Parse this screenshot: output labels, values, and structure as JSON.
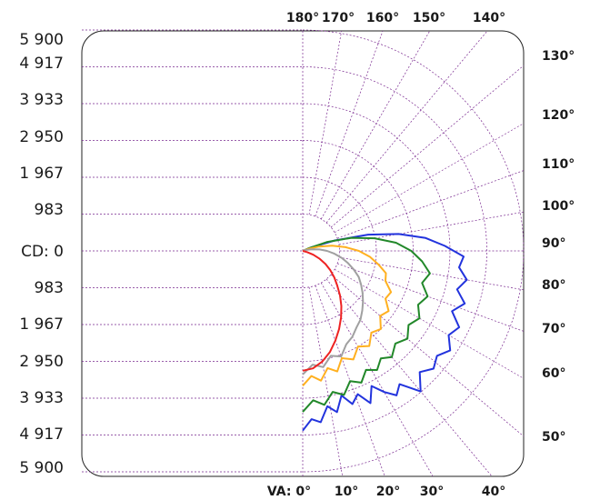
{
  "chart_data": {
    "type": "polar",
    "unit_prefix": "CD: 0",
    "max_cd": 5900,
    "cd_labels_upper": [
      "5 900",
      "4 917",
      "3 933",
      "2 950",
      "1 967",
      "983"
    ],
    "cd_labels_lower": [
      "983",
      "1 967",
      "2 950",
      "3 933",
      "4 917",
      "5 900"
    ],
    "cd_center_label": "CD: 0",
    "top_angle_labels": [
      "180°",
      "170°",
      "160°",
      "150°",
      "140°"
    ],
    "right_angle_labels": [
      "130°",
      "120°",
      "110°",
      "100°",
      "90°",
      "80°",
      "70°",
      "60°",
      "50°"
    ],
    "bottom_angle_labels": [
      "VA: 0°",
      "10°",
      "20°",
      "30°",
      "40°"
    ],
    "series": [
      {
        "color": "#2233dd",
        "points": [
          {
            "angle": 0,
            "cd": 4800
          },
          {
            "angle": 3,
            "cd": 4500
          },
          {
            "angle": 6,
            "cd": 4600
          },
          {
            "angle": 9,
            "cd": 4200
          },
          {
            "angle": 12,
            "cd": 4400
          },
          {
            "angle": 15,
            "cd": 4000
          },
          {
            "angle": 18,
            "cd": 4300
          },
          {
            "angle": 21,
            "cd": 4100
          },
          {
            "angle": 24,
            "cd": 4450
          },
          {
            "angle": 27,
            "cd": 4050
          },
          {
            "angle": 30,
            "cd": 4350
          },
          {
            "angle": 33,
            "cd": 4600
          },
          {
            "angle": 36,
            "cd": 4400
          },
          {
            "angle": 40,
            "cd": 4900
          },
          {
            "angle": 44,
            "cd": 4500
          },
          {
            "angle": 48,
            "cd": 4700
          },
          {
            "angle": 52,
            "cd": 4550
          },
          {
            "angle": 56,
            "cd": 4750
          },
          {
            "angle": 60,
            "cd": 4500
          },
          {
            "angle": 64,
            "cd": 4650
          },
          {
            "angle": 68,
            "cd": 4300
          },
          {
            "angle": 72,
            "cd": 4550
          },
          {
            "angle": 76,
            "cd": 4250
          },
          {
            "angle": 80,
            "cd": 4450
          },
          {
            "angle": 84,
            "cd": 4200
          },
          {
            "angle": 88,
            "cd": 4300
          },
          {
            "angle": 92,
            "cd": 3800
          },
          {
            "angle": 96,
            "cd": 3300
          },
          {
            "angle": 100,
            "cd": 2600
          },
          {
            "angle": 104,
            "cd": 1800
          },
          {
            "angle": 108,
            "cd": 900
          },
          {
            "angle": 112,
            "cd": 250
          },
          {
            "angle": 115,
            "cd": 0
          }
        ]
      },
      {
        "color": "#22882a",
        "points": [
          {
            "angle": 0,
            "cd": 4300
          },
          {
            "angle": 4,
            "cd": 4000
          },
          {
            "angle": 8,
            "cd": 4150
          },
          {
            "angle": 12,
            "cd": 3850
          },
          {
            "angle": 16,
            "cd": 4000
          },
          {
            "angle": 20,
            "cd": 3700
          },
          {
            "angle": 24,
            "cd": 3850
          },
          {
            "angle": 28,
            "cd": 3600
          },
          {
            "angle": 32,
            "cd": 3750
          },
          {
            "angle": 36,
            "cd": 3550
          },
          {
            "angle": 40,
            "cd": 3700
          },
          {
            "angle": 45,
            "cd": 3500
          },
          {
            "angle": 50,
            "cd": 3650
          },
          {
            "angle": 55,
            "cd": 3450
          },
          {
            "angle": 60,
            "cd": 3600
          },
          {
            "angle": 65,
            "cd": 3400
          },
          {
            "angle": 70,
            "cd": 3550
          },
          {
            "angle": 75,
            "cd": 3300
          },
          {
            "angle": 80,
            "cd": 3450
          },
          {
            "angle": 85,
            "cd": 3200
          },
          {
            "angle": 90,
            "cd": 2900
          },
          {
            "angle": 95,
            "cd": 2500
          },
          {
            "angle": 100,
            "cd": 1950
          },
          {
            "angle": 105,
            "cd": 1350
          },
          {
            "angle": 110,
            "cd": 700
          },
          {
            "angle": 114,
            "cd": 150
          },
          {
            "angle": 116,
            "cd": 0
          }
        ]
      },
      {
        "color": "#ffb020",
        "points": [
          {
            "angle": 0,
            "cd": 3600
          },
          {
            "angle": 4,
            "cd": 3350
          },
          {
            "angle": 8,
            "cd": 3500
          },
          {
            "angle": 12,
            "cd": 3200
          },
          {
            "angle": 16,
            "cd": 3350
          },
          {
            "angle": 20,
            "cd": 3050
          },
          {
            "angle": 25,
            "cd": 3200
          },
          {
            "angle": 30,
            "cd": 2950
          },
          {
            "angle": 35,
            "cd": 3100
          },
          {
            "angle": 40,
            "cd": 2850
          },
          {
            "angle": 45,
            "cd": 2950
          },
          {
            "angle": 50,
            "cd": 2700
          },
          {
            "angle": 55,
            "cd": 2800
          },
          {
            "angle": 60,
            "cd": 2550
          },
          {
            "angle": 65,
            "cd": 2600
          },
          {
            "angle": 70,
            "cd": 2350
          },
          {
            "angle": 75,
            "cd": 2300
          },
          {
            "angle": 80,
            "cd": 2050
          },
          {
            "angle": 85,
            "cd": 1800
          },
          {
            "angle": 90,
            "cd": 1500
          },
          {
            "angle": 95,
            "cd": 1150
          },
          {
            "angle": 100,
            "cd": 800
          },
          {
            "angle": 105,
            "cd": 450
          },
          {
            "angle": 110,
            "cd": 150
          },
          {
            "angle": 113,
            "cd": 0
          }
        ]
      },
      {
        "color": "#a0a0a0",
        "points": [
          {
            "angle": 0,
            "cd": 3300
          },
          {
            "angle": 5,
            "cd": 3050
          },
          {
            "angle": 10,
            "cd": 3150
          },
          {
            "angle": 15,
            "cd": 2900
          },
          {
            "angle": 20,
            "cd": 3000
          },
          {
            "angle": 25,
            "cd": 2750
          },
          {
            "angle": 30,
            "cd": 2650
          },
          {
            "angle": 35,
            "cd": 2500
          },
          {
            "angle": 40,
            "cd": 2400
          },
          {
            "angle": 45,
            "cd": 2250
          },
          {
            "angle": 50,
            "cd": 2100
          },
          {
            "angle": 55,
            "cd": 1950
          },
          {
            "angle": 60,
            "cd": 1800
          },
          {
            "angle": 65,
            "cd": 1650
          },
          {
            "angle": 70,
            "cd": 1450
          },
          {
            "angle": 75,
            "cd": 1250
          },
          {
            "angle": 80,
            "cd": 1050
          },
          {
            "angle": 85,
            "cd": 850
          },
          {
            "angle": 90,
            "cd": 650
          },
          {
            "angle": 95,
            "cd": 450
          },
          {
            "angle": 100,
            "cd": 250
          },
          {
            "angle": 105,
            "cd": 100
          },
          {
            "angle": 108,
            "cd": 0
          }
        ]
      },
      {
        "color": "#ee2222",
        "points": [
          {
            "angle": 0,
            "cd": 3200
          },
          {
            "angle": 5,
            "cd": 3150
          },
          {
            "angle": 10,
            "cd": 3000
          },
          {
            "angle": 15,
            "cd": 2800
          },
          {
            "angle": 20,
            "cd": 2550
          },
          {
            "angle": 25,
            "cd": 2300
          },
          {
            "angle": 30,
            "cd": 2050
          },
          {
            "angle": 35,
            "cd": 1800
          },
          {
            "angle": 40,
            "cd": 1550
          },
          {
            "angle": 45,
            "cd": 1300
          },
          {
            "angle": 50,
            "cd": 1100
          },
          {
            "angle": 55,
            "cd": 900
          },
          {
            "angle": 60,
            "cd": 700
          },
          {
            "angle": 65,
            "cd": 500
          },
          {
            "angle": 70,
            "cd": 300
          },
          {
            "angle": 75,
            "cd": 120
          },
          {
            "angle": 78,
            "cd": 0
          }
        ]
      }
    ],
    "grid": true
  }
}
